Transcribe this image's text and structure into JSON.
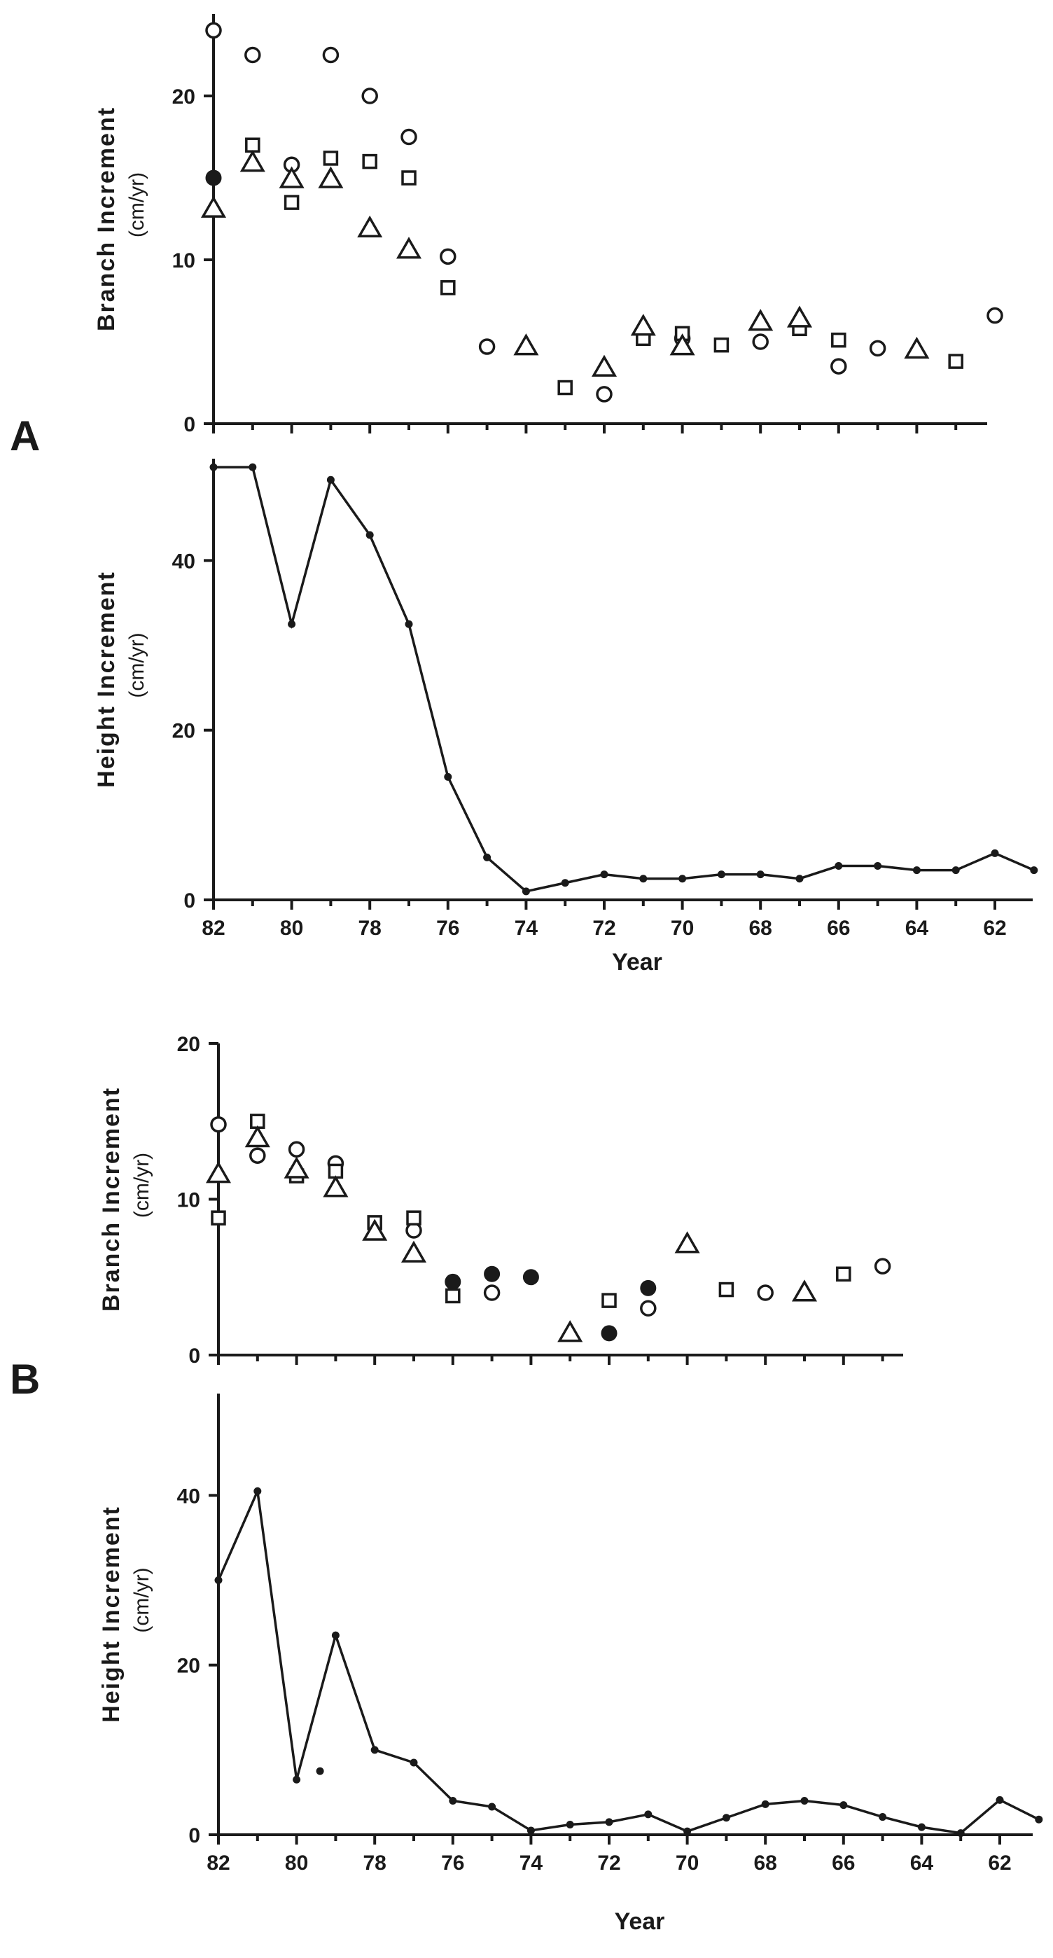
{
  "panel_labels": {
    "a": "A",
    "b": "B"
  },
  "chart_data": [
    {
      "id": "A-branch",
      "type": "scatter",
      "panel": "A",
      "xlabel": "",
      "ylabel": "Branch Increment",
      "yunit": "(cm/yr)",
      "xlim": [
        82,
        61
      ],
      "ylim": [
        0,
        25
      ],
      "yticks": [
        0,
        10,
        20
      ],
      "series": [
        {
          "marker": "open-circle",
          "points": [
            [
              82,
              24
            ],
            [
              81,
              22.5
            ],
            [
              80,
              15.8
            ],
            [
              79,
              22.5
            ],
            [
              78,
              20
            ],
            [
              77,
              17.5
            ],
            [
              76,
              10.2
            ],
            [
              75,
              4.7
            ],
            [
              72,
              1.8
            ],
            [
              70,
              5.2
            ],
            [
              68,
              5
            ],
            [
              66,
              3.5
            ],
            [
              65,
              4.6
            ],
            [
              62,
              6.6
            ]
          ]
        },
        {
          "marker": "filled-circle",
          "points": [
            [
              82,
              15
            ]
          ]
        },
        {
          "marker": "open-square",
          "points": [
            [
              81,
              17
            ],
            [
              80,
              13.5
            ],
            [
              79,
              16.2
            ],
            [
              78,
              16
            ],
            [
              77,
              15
            ],
            [
              76,
              8.3
            ],
            [
              73,
              2.2
            ],
            [
              71,
              5.2
            ],
            [
              70,
              5.5
            ],
            [
              69,
              4.8
            ],
            [
              67,
              5.8
            ],
            [
              66,
              5.1
            ],
            [
              63,
              3.8
            ]
          ]
        },
        {
          "marker": "open-triangle",
          "points": [
            [
              82,
              13.2
            ],
            [
              81,
              16
            ],
            [
              80,
              15
            ],
            [
              79,
              15
            ],
            [
              78,
              12
            ],
            [
              77,
              10.7
            ],
            [
              74,
              4.8
            ],
            [
              72,
              3.5
            ],
            [
              71,
              6
            ],
            [
              70,
              4.8
            ],
            [
              68,
              6.3
            ],
            [
              67,
              6.5
            ],
            [
              64,
              4.6
            ]
          ]
        }
      ]
    },
    {
      "id": "A-height",
      "type": "line",
      "panel": "A",
      "xlabel": "Year",
      "ylabel": "Height Increment",
      "yunit": "(cm/yr)",
      "xlim": [
        82,
        61
      ],
      "ylim": [
        0,
        52
      ],
      "yticks": [
        0,
        20,
        40
      ],
      "xticks": [
        82,
        80,
        78,
        76,
        74,
        72,
        70,
        68,
        66,
        64,
        62
      ],
      "xtick_labels": [
        "82",
        "80",
        "78",
        "76",
        "74",
        "72",
        "70",
        "68",
        "66",
        "64",
        "62"
      ],
      "series": [
        {
          "x": [
            82,
            81,
            80,
            79,
            78,
            77,
            76,
            75,
            74,
            73,
            72,
            71,
            70,
            69,
            68,
            67,
            66,
            65,
            64,
            63,
            62,
            61
          ],
          "values": [
            51,
            51,
            32.5,
            49.5,
            43,
            32.5,
            14.5,
            5,
            1,
            2,
            3,
            2.5,
            2.5,
            3,
            3,
            2.5,
            4,
            4,
            3.5,
            3.5,
            5.5,
            3.5
          ]
        }
      ]
    },
    {
      "id": "B-branch",
      "type": "scatter",
      "panel": "B",
      "xlabel": "",
      "ylabel": "Branch Increment",
      "yunit": "(cm/yr)",
      "xlim": [
        82,
        61
      ],
      "ylim": [
        0,
        20
      ],
      "yticks": [
        0,
        10,
        20
      ],
      "series": [
        {
          "marker": "open-circle",
          "points": [
            [
              82,
              14.8
            ],
            [
              81,
              12.8
            ],
            [
              80,
              13.2
            ],
            [
              79,
              12.3
            ],
            [
              77,
              8
            ],
            [
              75,
              4
            ],
            [
              71,
              3
            ],
            [
              68,
              4
            ],
            [
              65,
              5.7
            ]
          ]
        },
        {
          "marker": "filled-circle",
          "points": [
            [
              76,
              4.7
            ],
            [
              75,
              5.2
            ],
            [
              74,
              5
            ],
            [
              72,
              1.4
            ],
            [
              71,
              4.3
            ]
          ]
        },
        {
          "marker": "open-square",
          "points": [
            [
              82,
              8.8
            ],
            [
              81,
              15
            ],
            [
              80,
              11.5
            ],
            [
              79,
              11.8
            ],
            [
              78,
              8.5
            ],
            [
              77,
              8.8
            ],
            [
              76,
              3.8
            ],
            [
              72,
              3.5
            ],
            [
              69,
              4.2
            ],
            [
              66,
              5.2
            ]
          ]
        },
        {
          "marker": "open-triangle",
          "points": [
            [
              82,
              11.7
            ],
            [
              81,
              14
            ],
            [
              80,
              12
            ],
            [
              79,
              10.8
            ],
            [
              78,
              8
            ],
            [
              77,
              6.6
            ],
            [
              73,
              1.5
            ],
            [
              70,
              7.2
            ],
            [
              67,
              4.1
            ]
          ]
        }
      ]
    },
    {
      "id": "B-height",
      "type": "line",
      "panel": "B",
      "xlabel": "Year",
      "ylabel": "Height Increment",
      "yunit": "(cm/yr)",
      "xlim": [
        82,
        61
      ],
      "ylim": [
        0,
        52
      ],
      "yticks": [
        0,
        20,
        40
      ],
      "xticks": [
        82,
        80,
        78,
        76,
        74,
        72,
        70,
        68,
        66,
        64,
        62
      ],
      "xtick_labels": [
        "82",
        "80",
        "78",
        "76",
        "74",
        "72",
        "70",
        "68",
        "66",
        "64",
        "62"
      ],
      "series": [
        {
          "x": [
            82,
            81,
            80,
            79,
            78,
            77,
            76,
            75,
            74,
            73,
            72,
            71,
            70,
            69,
            68,
            67,
            66,
            65,
            64,
            63,
            62,
            61
          ],
          "values": [
            30,
            40.5,
            6.5,
            23.5,
            10,
            8.5,
            4,
            3.3,
            0.5,
            1.2,
            1.5,
            2.4,
            0.4,
            2,
            3.6,
            4,
            3.5,
            2.1,
            0.9,
            0.2,
            4.1,
            1.8
          ]
        },
        {
          "marker": "filled-dot",
          "points": [
            [
              79.4,
              7.5
            ]
          ]
        }
      ]
    }
  ]
}
